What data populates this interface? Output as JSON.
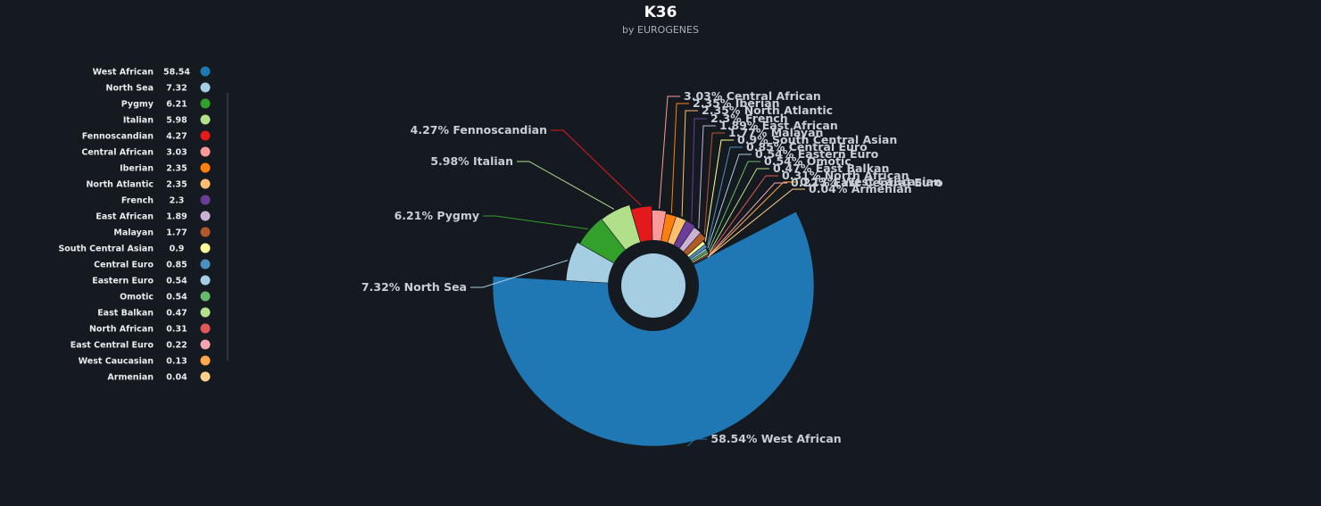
{
  "chart_data": {
    "type": "pie",
    "title": "K36",
    "subtitle": "by EUROGENES",
    "slices": [
      {
        "name": "West African",
        "value": 58.54,
        "color": "#1f77b4"
      },
      {
        "name": "North Sea",
        "value": 7.32,
        "color": "#a6cee3"
      },
      {
        "name": "Pygmy",
        "value": 6.21,
        "color": "#33a02c"
      },
      {
        "name": "Italian",
        "value": 5.98,
        "color": "#b2df8a"
      },
      {
        "name": "Fennoscandian",
        "value": 4.27,
        "color": "#e31a1c"
      },
      {
        "name": "Central African",
        "value": 3.03,
        "color": "#fb9a99"
      },
      {
        "name": "Iberian",
        "value": 2.35,
        "color": "#ff7f0e"
      },
      {
        "name": "North Atlantic",
        "value": 2.35,
        "color": "#fdbf6f"
      },
      {
        "name": "French",
        "value": 2.3,
        "color": "#6a3d9a"
      },
      {
        "name": "East African",
        "value": 1.89,
        "color": "#cab2d6"
      },
      {
        "name": "Malayan",
        "value": 1.77,
        "color": "#b15928"
      },
      {
        "name": "South Central Asian",
        "value": 0.9,
        "color": "#ffff99"
      },
      {
        "name": "Central Euro",
        "value": 0.85,
        "color": "#4f8fc0"
      },
      {
        "name": "Eastern Euro",
        "value": 0.54,
        "color": "#a6cee3"
      },
      {
        "name": "Omotic",
        "value": 0.54,
        "color": "#66bb6a"
      },
      {
        "name": "East Balkan",
        "value": 0.47,
        "color": "#b2df8a"
      },
      {
        "name": "North African",
        "value": 0.31,
        "color": "#e15759"
      },
      {
        "name": "East Central Euro",
        "value": 0.22,
        "color": "#f4a6b0"
      },
      {
        "name": "West Caucasian",
        "value": 0.13,
        "color": "#ffa94d"
      },
      {
        "name": "Armenian",
        "value": 0.04,
        "color": "#ffd08a"
      }
    ],
    "legend_position": "left"
  }
}
